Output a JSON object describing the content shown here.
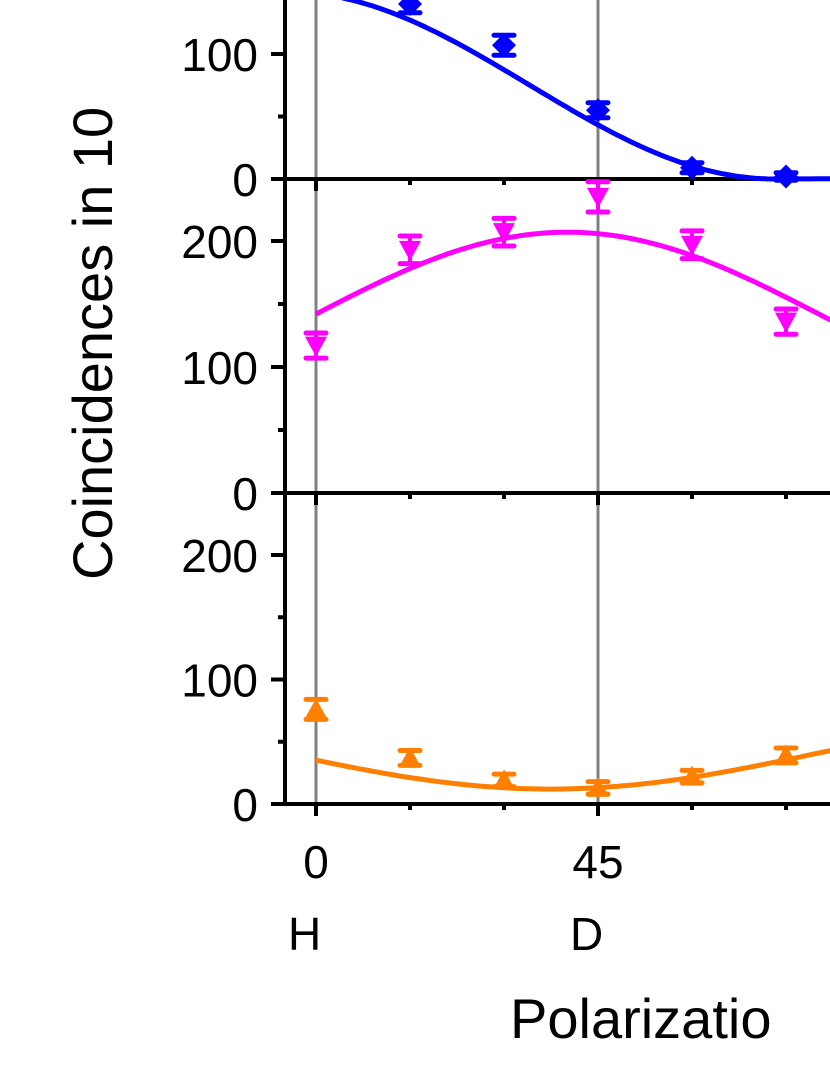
{
  "chart_data": {
    "type": "line",
    "title": "",
    "xlabel": "Polarizatio",
    "ylabel": "Coincidences in 10",
    "x": [
      0,
      15,
      30,
      45,
      60,
      75
    ],
    "x_tick_labels": [
      "0",
      "45"
    ],
    "x_tick_values": [
      0,
      45
    ],
    "x_state_labels": [
      {
        "x": 0,
        "label": "H"
      },
      {
        "x": 45,
        "label": "D"
      }
    ],
    "vertical_reference_lines": [
      0,
      45
    ],
    "panels": [
      {
        "name": "top",
        "color": "#0000ff",
        "marker": "diamond",
        "ylim": [
          0,
          200
        ],
        "y_tick_labels": [
          "0",
          "100"
        ],
        "series": [
          {
            "name": "blue",
            "values": [
              null,
              140,
              107,
              55,
              9,
              2
            ],
            "errors": [
              null,
              7,
              8,
              6,
              4,
              3
            ]
          }
        ],
        "fit": "cos^2 decreasing"
      },
      {
        "name": "middle",
        "color": "#ff00ff",
        "marker": "triangle-down",
        "ylim": [
          0,
          250
        ],
        "y_tick_labels": [
          "0",
          "100",
          "200"
        ],
        "series": [
          {
            "name": "magenta",
            "values": [
              117,
              193,
              207,
              235,
              197,
              136
            ],
            "errors": [
              10,
              11,
              11,
              12,
              11,
              10
            ]
          }
        ],
        "fit": "sinusoid peak ~40"
      },
      {
        "name": "bottom",
        "color": "#ff8000",
        "marker": "triangle-up",
        "ylim": [
          0,
          250
        ],
        "y_tick_labels": [
          "0",
          "100",
          "200"
        ],
        "series": [
          {
            "name": "orange",
            "values": [
              76,
              37,
              19,
              13,
              22,
              39
            ],
            "errors": [
              8,
              6,
              5,
              5,
              5,
              6
            ]
          }
        ],
        "fit": "sinusoid min ~42"
      }
    ]
  }
}
